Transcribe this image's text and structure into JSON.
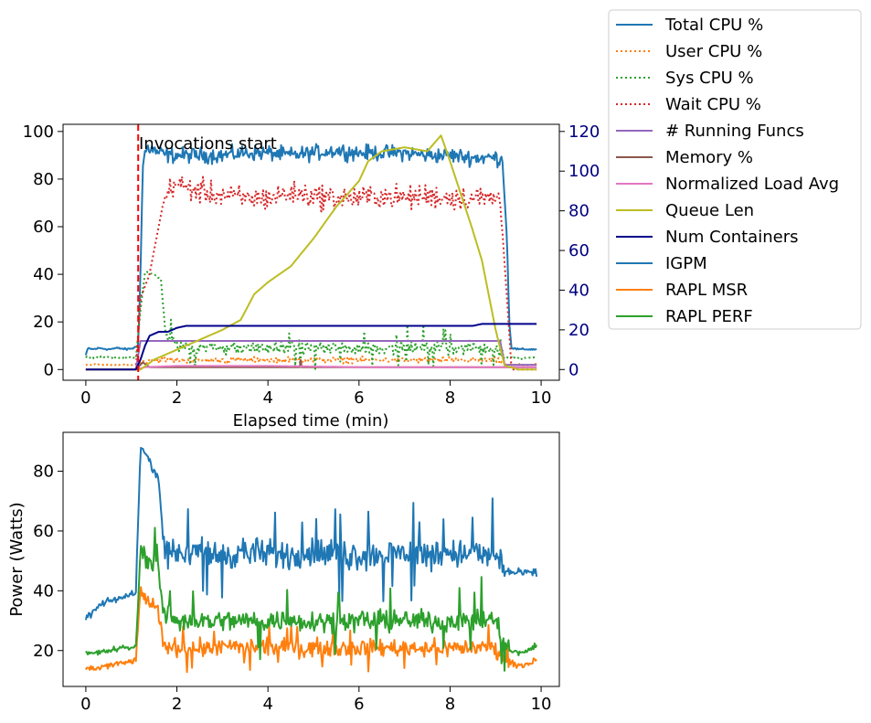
{
  "chart_data": [
    {
      "type": "line",
      "xlabel": "Elapsed time (min)",
      "ylabel": "",
      "y2label": "",
      "xlim": [
        -0.5,
        10.4
      ],
      "ylim": [
        -4.5,
        103
      ],
      "y2lim": [
        -5.4,
        123.6
      ],
      "xticks": [
        0,
        2,
        4,
        6,
        8,
        10
      ],
      "yticks": [
        0,
        20,
        40,
        60,
        80,
        100
      ],
      "y2ticks": [
        0,
        20,
        40,
        60,
        80,
        100,
        120
      ],
      "y2_tick_color": "#000080",
      "annotation": {
        "text": "Invocations start",
        "x": 1.15,
        "color": "#ff0000",
        "style": "dashed"
      },
      "series": [
        {
          "name": "Total CPU %",
          "color": "#1f77b4",
          "style": "solid",
          "axis": "left",
          "points": [
            [
              0,
              6
            ],
            [
              0.05,
              9
            ],
            [
              0.15,
              8.5
            ],
            [
              0.3,
              9
            ],
            [
              0.5,
              8.5
            ],
            [
              0.7,
              9
            ],
            [
              0.9,
              8.5
            ],
            [
              1.05,
              9
            ],
            [
              1.15,
              10
            ],
            [
              1.2,
              40
            ],
            [
              1.25,
              85
            ],
            [
              1.3,
              92
            ],
            [
              1.4,
              93
            ],
            [
              1.6,
              91
            ],
            [
              1.8,
              90
            ],
            [
              2.0,
              90
            ],
            [
              2.5,
              90
            ],
            [
              3.0,
              90
            ],
            [
              3.5,
              91
            ],
            [
              4.0,
              91
            ],
            [
              4.5,
              90
            ],
            [
              5.0,
              91
            ],
            [
              5.5,
              92
            ],
            [
              6.0,
              91
            ],
            [
              6.5,
              91
            ],
            [
              7.0,
              91
            ],
            [
              7.5,
              90
            ],
            [
              8.0,
              90
            ],
            [
              8.5,
              89
            ],
            [
              9.0,
              89
            ],
            [
              9.15,
              88
            ],
            [
              9.25,
              55
            ],
            [
              9.3,
              20
            ],
            [
              9.35,
              9
            ],
            [
              9.5,
              8.5
            ],
            [
              9.9,
              8.5
            ]
          ]
        },
        {
          "name": "User CPU %",
          "color": "#ff7f0e",
          "style": "dotted",
          "axis": "left",
          "points": [
            [
              0,
              2
            ],
            [
              1.1,
              2
            ],
            [
              1.2,
              3
            ],
            [
              1.4,
              4
            ],
            [
              2,
              4
            ],
            [
              3,
              4
            ],
            [
              4,
              4
            ],
            [
              5,
              4
            ],
            [
              6,
              4
            ],
            [
              7,
              4
            ],
            [
              8,
              4
            ],
            [
              9,
              4
            ],
            [
              9.25,
              2
            ],
            [
              9.9,
              2
            ]
          ]
        },
        {
          "name": "Sys CPU %",
          "color": "#2ca02c",
          "style": "dotted",
          "axis": "left",
          "points": [
            [
              0,
              5
            ],
            [
              1.1,
              5
            ],
            [
              1.2,
              25
            ],
            [
              1.3,
              41
            ],
            [
              1.5,
              40
            ],
            [
              1.65,
              38
            ],
            [
              1.75,
              15
            ],
            [
              2,
              10
            ],
            [
              3,
              9
            ],
            [
              4,
              9
            ],
            [
              5,
              9
            ],
            [
              6,
              9
            ],
            [
              7,
              9
            ],
            [
              8,
              9
            ],
            [
              9,
              9
            ],
            [
              9.25,
              5
            ],
            [
              9.9,
              5
            ]
          ]
        },
        {
          "name": "Wait CPU %",
          "color": "#d62728",
          "style": "dotted",
          "axis": "left",
          "points": [
            [
              0,
              0
            ],
            [
              1.1,
              0
            ],
            [
              1.2,
              30
            ],
            [
              1.4,
              40
            ],
            [
              1.7,
              70
            ],
            [
              1.9,
              78
            ],
            [
              2.5,
              75
            ],
            [
              3,
              73
            ],
            [
              3.5,
              72
            ],
            [
              4,
              72
            ],
            [
              4.5,
              74
            ],
            [
              5,
              73
            ],
            [
              5.5,
              72
            ],
            [
              6,
              72
            ],
            [
              6.5,
              73
            ],
            [
              7,
              72
            ],
            [
              7.5,
              73
            ],
            [
              8,
              72
            ],
            [
              8.5,
              72
            ],
            [
              9.1,
              72
            ],
            [
              9.25,
              30
            ],
            [
              9.35,
              0
            ],
            [
              9.9,
              0
            ]
          ]
        },
        {
          "name": "# Running Funcs",
          "color": "#9467bd",
          "style": "solid",
          "axis": "left",
          "points": [
            [
              0,
              0
            ],
            [
              1.1,
              0
            ],
            [
              1.2,
              12
            ],
            [
              2,
              12
            ],
            [
              3,
              12
            ],
            [
              4,
              12
            ],
            [
              5,
              12
            ],
            [
              6,
              12
            ],
            [
              7,
              12
            ],
            [
              8,
              12
            ],
            [
              9.1,
              12
            ],
            [
              9.2,
              2
            ],
            [
              9.9,
              2
            ]
          ]
        },
        {
          "name": "Memory %",
          "color": "#8c564b",
          "style": "solid",
          "axis": "left",
          "points": [
            [
              0,
              0
            ],
            [
              1.1,
              0
            ],
            [
              1.25,
              3
            ],
            [
              1.4,
              1
            ],
            [
              2,
              1
            ],
            [
              4,
              1
            ],
            [
              4.7,
              1
            ],
            [
              4.72,
              4
            ],
            [
              4.74,
              1
            ],
            [
              6,
              1
            ],
            [
              8,
              1
            ],
            [
              9.9,
              1
            ]
          ]
        },
        {
          "name": "Normalized Load Avg",
          "color": "#e377c2",
          "style": "solid",
          "axis": "left",
          "points": [
            [
              0,
              0
            ],
            [
              1.1,
              0
            ],
            [
              1.3,
              1
            ],
            [
              2,
              1.5
            ],
            [
              4,
              1.5
            ],
            [
              6,
              1
            ],
            [
              8,
              1
            ],
            [
              9,
              1
            ],
            [
              9.9,
              1
            ]
          ]
        },
        {
          "name": "Queue Len",
          "color": "#bcbd22",
          "style": "solid",
          "axis": "right",
          "points": [
            [
              0,
              0
            ],
            [
              1.2,
              0
            ],
            [
              1.5,
              5
            ],
            [
              2,
              10
            ],
            [
              2.5,
              15
            ],
            [
              3,
              20
            ],
            [
              3.4,
              25
            ],
            [
              3.7,
              38
            ],
            [
              4,
              44
            ],
            [
              4.5,
              52
            ],
            [
              5,
              66
            ],
            [
              5.5,
              82
            ],
            [
              6,
              95
            ],
            [
              6.2,
              105
            ],
            [
              6.5,
              110
            ],
            [
              7,
              112
            ],
            [
              7.5,
              110
            ],
            [
              7.8,
              118
            ],
            [
              8,
              105
            ],
            [
              8.5,
              70
            ],
            [
              8.7,
              55
            ],
            [
              9,
              20
            ],
            [
              9.2,
              2
            ],
            [
              9.5,
              0
            ],
            [
              9.9,
              0
            ]
          ]
        },
        {
          "name": "Num Containers",
          "color": "#00008b",
          "style": "solid",
          "axis": "right",
          "points": [
            [
              0,
              0
            ],
            [
              1.1,
              0
            ],
            [
              1.2,
              5
            ],
            [
              1.3,
              12
            ],
            [
              1.4,
              17
            ],
            [
              1.6,
              19
            ],
            [
              1.8,
              19
            ],
            [
              2,
              21
            ],
            [
              2.2,
              22
            ],
            [
              3,
              22
            ],
            [
              4,
              22
            ],
            [
              5,
              22
            ],
            [
              6,
              22
            ],
            [
              7,
              22
            ],
            [
              8,
              22
            ],
            [
              8.5,
              22
            ],
            [
              8.7,
              23
            ],
            [
              9.9,
              23
            ]
          ]
        }
      ]
    },
    {
      "type": "line",
      "xlabel": "",
      "ylabel": "Power (Watts)",
      "xlim": [
        -0.5,
        10.4
      ],
      "ylim": [
        8,
        93
      ],
      "xticks": [
        0,
        2,
        4,
        6,
        8,
        10
      ],
      "yticks": [
        20,
        40,
        60,
        80
      ],
      "series": [
        {
          "name": "IGPM",
          "color": "#1f77b4",
          "style": "solid",
          "points": [
            [
              0,
              31
            ],
            [
              0.1,
              32
            ],
            [
              0.3,
              35
            ],
            [
              0.6,
              37
            ],
            [
              0.9,
              38
            ],
            [
              1.1,
              40
            ],
            [
              1.2,
              88
            ],
            [
              1.35,
              85
            ],
            [
              1.5,
              80
            ],
            [
              1.6,
              78
            ],
            [
              1.7,
              57
            ],
            [
              2,
              53
            ],
            [
              2.5,
              53
            ],
            [
              3,
              52
            ],
            [
              3.5,
              53
            ],
            [
              4,
              52
            ],
            [
              4.5,
              52
            ],
            [
              5,
              53
            ],
            [
              5.5,
              52
            ],
            [
              6,
              52
            ],
            [
              6.5,
              52
            ],
            [
              7,
              53
            ],
            [
              7.5,
              52
            ],
            [
              8,
              53
            ],
            [
              8.5,
              52
            ],
            [
              9,
              52
            ],
            [
              9.3,
              46
            ],
            [
              9.9,
              46
            ]
          ]
        },
        {
          "name": "RAPL MSR",
          "color": "#ff7f0e",
          "style": "solid",
          "points": [
            [
              0,
              14
            ],
            [
              0.2,
              14
            ],
            [
              0.5,
              15
            ],
            [
              0.9,
              16
            ],
            [
              1.1,
              17
            ],
            [
              1.2,
              40
            ],
            [
              1.4,
              36
            ],
            [
              1.6,
              33
            ],
            [
              1.7,
              22
            ],
            [
              2,
              21
            ],
            [
              2.5,
              21
            ],
            [
              3,
              21
            ],
            [
              4,
              21
            ],
            [
              5,
              21
            ],
            [
              6,
              21
            ],
            [
              7,
              21
            ],
            [
              8,
              21
            ],
            [
              9,
              21
            ],
            [
              9.3,
              16
            ],
            [
              9.6,
              15
            ],
            [
              9.9,
              17
            ]
          ]
        },
        {
          "name": "RAPL PERF",
          "color": "#2ca02c",
          "style": "solid",
          "points": [
            [
              0,
              19
            ],
            [
              0.2,
              19
            ],
            [
              0.5,
              20
            ],
            [
              0.9,
              21
            ],
            [
              1.1,
              21
            ],
            [
              1.2,
              53
            ],
            [
              1.4,
              50
            ],
            [
              1.6,
              48
            ],
            [
              1.7,
              32
            ],
            [
              2,
              30
            ],
            [
              2.5,
              30
            ],
            [
              3,
              30
            ],
            [
              4,
              30
            ],
            [
              5,
              30
            ],
            [
              6,
              30
            ],
            [
              7,
              30
            ],
            [
              8,
              30
            ],
            [
              9,
              30
            ],
            [
              9.3,
              20
            ],
            [
              9.6,
              19
            ],
            [
              9.9,
              22
            ]
          ]
        }
      ]
    }
  ]
}
